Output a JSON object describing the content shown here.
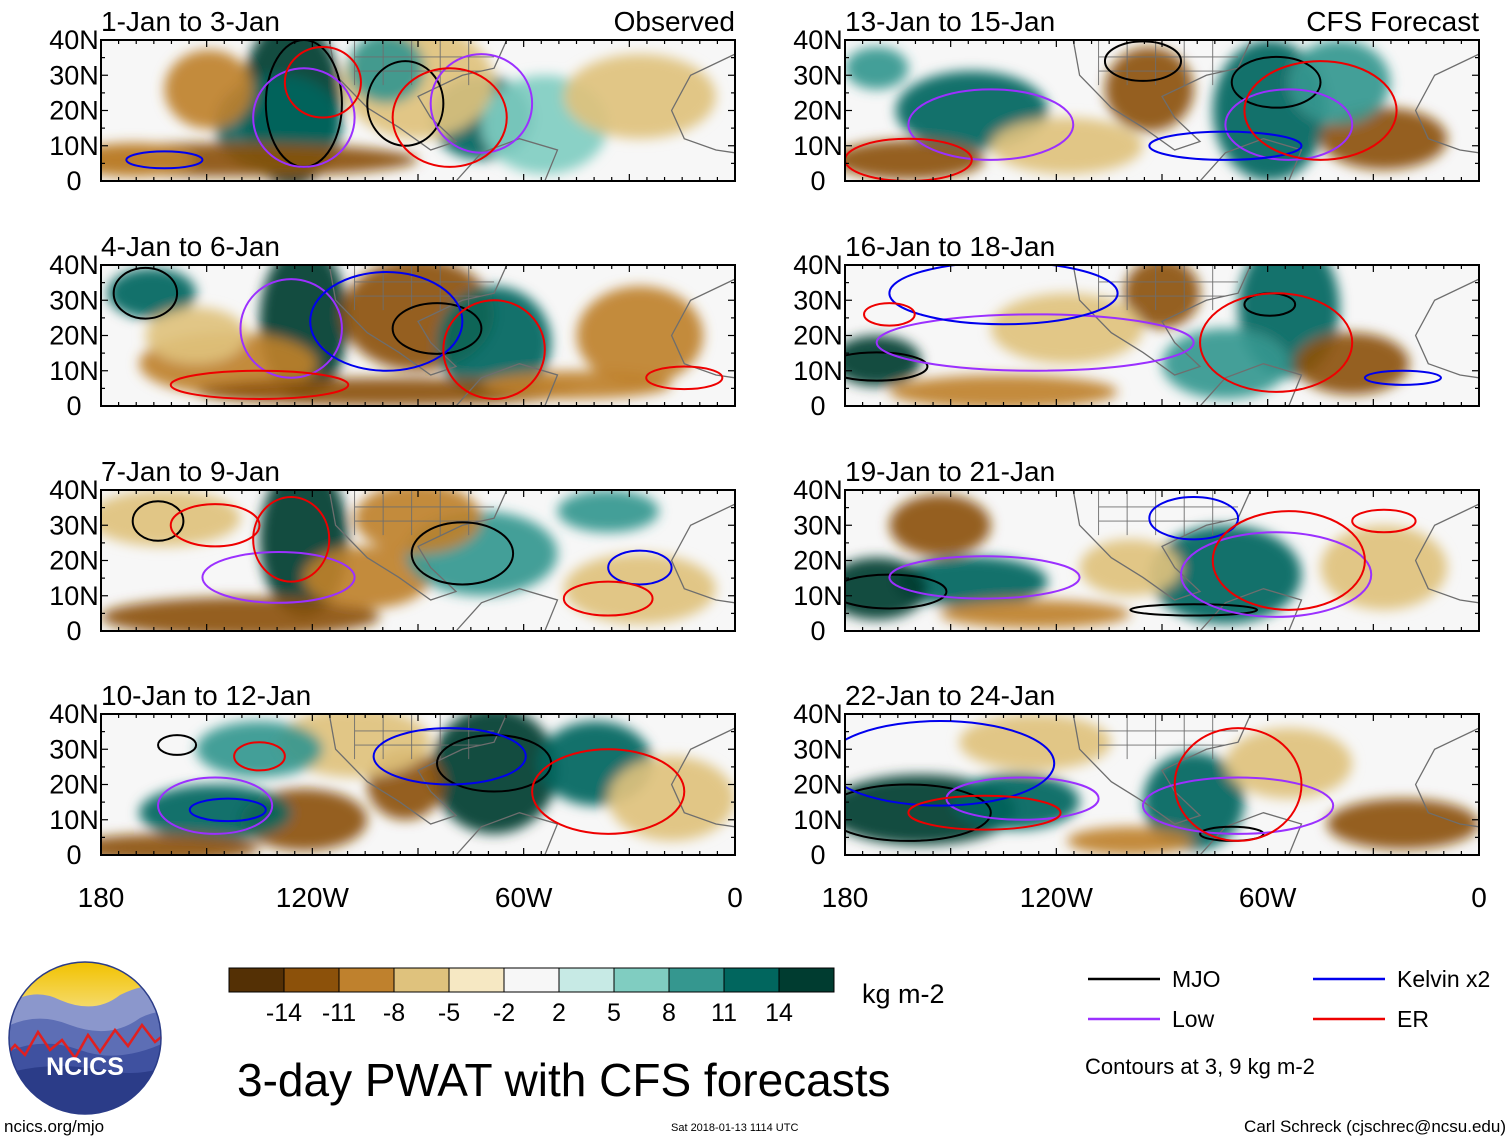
{
  "figure": {
    "title": "3-day PWAT with CFS forecasts",
    "website": "ncics.org/mjo",
    "timestamp": "Sat 2018-01-13 1114 UTC",
    "credit": "Carl Schreck (cjschrec@ncsu.edu)",
    "logo_text": "NCICS"
  },
  "chart_data": {
    "type": "heatmap",
    "variable": "3-day PWAT anomaly",
    "units": "kg m-2",
    "lat_ticks": [
      "40N",
      "30N",
      "20N",
      "10N",
      "0"
    ],
    "lon_ticks": [
      "180",
      "120W",
      "60W",
      "0"
    ],
    "lat_range": [
      0,
      40
    ],
    "lon_range": [
      -180,
      0
    ],
    "colorbar": {
      "units": "kg m-2",
      "levels": [
        "-14",
        "-11",
        "-8",
        "-5",
        "-2",
        "2",
        "5",
        "8",
        "11",
        "14"
      ],
      "colors": [
        "#543005",
        "#8c510a",
        "#bf812d",
        "#dfc27d",
        "#f6e8c3",
        "#f7f7f7",
        "#c7eae5",
        "#80cdc1",
        "#35978f",
        "#01665e",
        "#003c30"
      ]
    },
    "legend": {
      "items": [
        {
          "label": "MJO",
          "color": "#000000"
        },
        {
          "label": "Kelvin x2",
          "color": "#0000ee"
        },
        {
          "label": "Low",
          "color": "#9b30ff"
        },
        {
          "label": "ER",
          "color": "#ee0000"
        }
      ],
      "contour_note": "Contours at 3, 9 kg m-2"
    },
    "column_headers": [
      "Observed",
      "CFS Forecast"
    ],
    "panels": [
      {
        "label": "1-Jan to 3-Jan",
        "source": "Observed"
      },
      {
        "label": "4-Jan to 6-Jan",
        "source": "Observed"
      },
      {
        "label": "7-Jan to 9-Jan",
        "source": "Observed"
      },
      {
        "label": "10-Jan to 12-Jan",
        "source": "Observed"
      },
      {
        "label": "13-Jan to 15-Jan",
        "source": "CFS Forecast"
      },
      {
        "label": "16-Jan to 18-Jan",
        "source": "CFS Forecast"
      },
      {
        "label": "19-Jan to 21-Jan",
        "source": "CFS Forecast"
      },
      {
        "label": "22-Jan to 24-Jan",
        "source": "CFS Forecast"
      }
    ]
  }
}
